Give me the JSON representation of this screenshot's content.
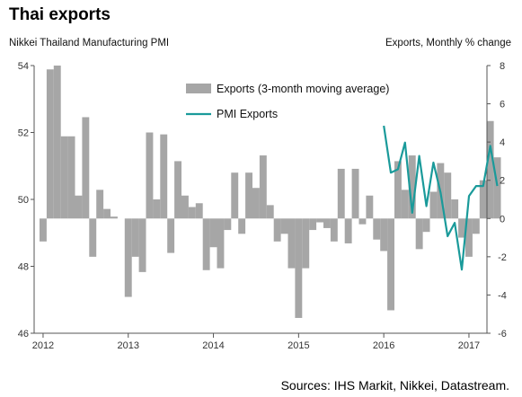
{
  "chart_data": {
    "type": "bar+line",
    "title": "Thai exports",
    "left_axis_label": "Nikkei Thailand Manufacturing PMI",
    "right_axis_label": "Exports, Monthly % change",
    "left_ylim": [
      46,
      54
    ],
    "left_ticks": [
      "46",
      "48",
      "50",
      "52",
      "54"
    ],
    "right_ylim": [
      -6,
      8
    ],
    "right_ticks": [
      "-6",
      "-4",
      "-2",
      "0",
      "2",
      "4",
      "6",
      "8"
    ],
    "x_ticks": [
      "2012",
      "2013",
      "2014",
      "2015",
      "2016",
      "2017"
    ],
    "x_start_year": 2012,
    "grid": false,
    "legend_position": "top-center",
    "source": "Sources: IHS Markit, Nikkei, Datastream.",
    "series": [
      {
        "name": "Exports (3-month moving average)",
        "kind": "bar",
        "axis": "right",
        "color": "#a6a6a6",
        "months_from_2012_01": [
          0,
          1,
          2,
          3,
          4,
          5,
          6,
          7,
          8,
          9,
          10,
          11,
          12,
          13,
          14,
          15,
          16,
          17,
          18,
          19,
          20,
          21,
          22,
          23,
          24,
          25,
          26,
          27,
          28,
          29,
          30,
          31,
          32,
          33,
          34,
          35,
          36,
          37,
          38,
          39,
          40,
          41,
          42,
          43,
          44,
          45,
          46,
          47,
          48,
          49,
          50,
          51,
          52,
          53,
          54,
          55,
          56,
          57,
          58,
          59,
          60,
          61,
          62,
          63,
          64
        ],
        "values": [
          -1.2,
          7.8,
          8.0,
          4.3,
          4.3,
          1.2,
          5.3,
          -2.0,
          1.5,
          0.5,
          0.1,
          0.0,
          -4.1,
          -2.0,
          -2.8,
          4.5,
          1.0,
          4.4,
          -1.8,
          3.0,
          1.2,
          0.6,
          0.8,
          -2.7,
          -1.5,
          -2.6,
          -0.6,
          2.4,
          -0.8,
          2.4,
          1.6,
          3.3,
          0.7,
          -1.2,
          -0.8,
          -2.6,
          -5.2,
          -2.6,
          -0.6,
          -0.2,
          -0.5,
          -1.2,
          2.6,
          -1.3,
          2.6,
          -0.3,
          1.2,
          -1.1,
          -1.7,
          -4.8,
          3.0,
          1.5,
          3.3,
          -1.6,
          -0.7,
          1.4,
          2.9,
          2.4,
          1.0,
          -1.0,
          -2.0,
          -0.8,
          2.0,
          5.1,
          3.2
        ]
      },
      {
        "name": "PMI Exports",
        "kind": "line",
        "axis": "left",
        "color": "#1a9a9a",
        "months_from_2012_01": [
          48,
          49,
          50,
          51,
          52,
          53,
          54,
          55,
          56,
          57,
          58,
          59,
          60,
          61,
          62,
          63,
          64
        ],
        "values": [
          52.2,
          50.8,
          50.9,
          51.7,
          49.6,
          51.3,
          49.8,
          51.1,
          50.2,
          48.9,
          49.3,
          47.9,
          50.1,
          50.4,
          50.4,
          51.6,
          50.4
        ]
      }
    ]
  }
}
